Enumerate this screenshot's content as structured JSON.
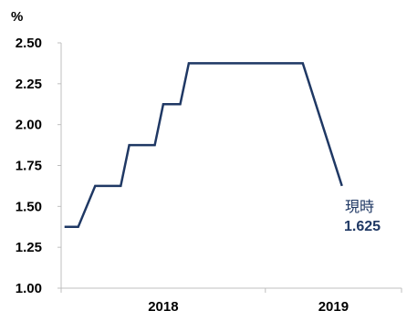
{
  "chart_data": {
    "type": "line",
    "ylabel": "%",
    "ylim": [
      1.0,
      2.5
    ],
    "yticks": [
      "2.50",
      "2.25",
      "2.00",
      "1.75",
      "1.50",
      "1.25",
      "1.00"
    ],
    "xlim": [
      0,
      20
    ],
    "categories": [
      {
        "label": "2018",
        "from": 0,
        "to": 12
      },
      {
        "label": "2019",
        "from": 12,
        "to": 20
      }
    ],
    "series": [
      {
        "color": "#1f3864",
        "x": [
          0.2,
          1.0,
          2.0,
          3.5,
          4.0,
          5.5,
          6.0,
          7.0,
          7.5,
          9.0,
          10.0,
          13.2,
          14.2,
          16.5
        ],
        "y": [
          1.375,
          1.375,
          1.625,
          1.625,
          1.875,
          1.875,
          2.125,
          2.125,
          2.375,
          2.375,
          2.375,
          2.375,
          2.375,
          1.625
        ]
      }
    ],
    "annotation": {
      "label": "現時",
      "value": "1.625",
      "at_y": 1.625
    },
    "grid": false,
    "legend": "none"
  }
}
